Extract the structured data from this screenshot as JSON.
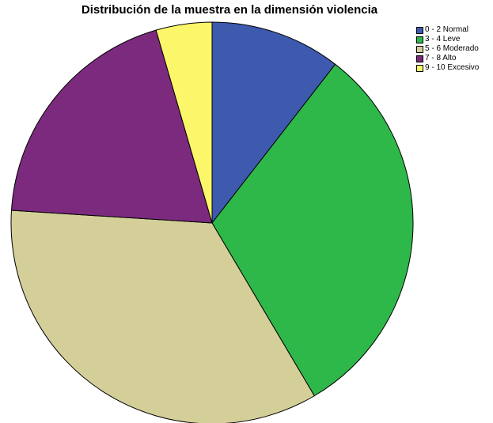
{
  "chart_data": {
    "type": "pie",
    "title": "Distribución de la muestra en la dimensión violencia",
    "categories": [
      "0 - 2 Normal",
      "3 - 4 Leve",
      "5 - 6 Moderado",
      "7 - 8 Alto",
      "9 - 10 Excesivo"
    ],
    "values": [
      10.5,
      31.0,
      34.5,
      19.5,
      4.5
    ],
    "colors": [
      "#3d5aae",
      "#2fb84a",
      "#d4cf99",
      "#7b2a7e",
      "#fcf76a"
    ],
    "start_angle_deg": 0,
    "direction": "clockwise",
    "legend_position": "top-right"
  }
}
